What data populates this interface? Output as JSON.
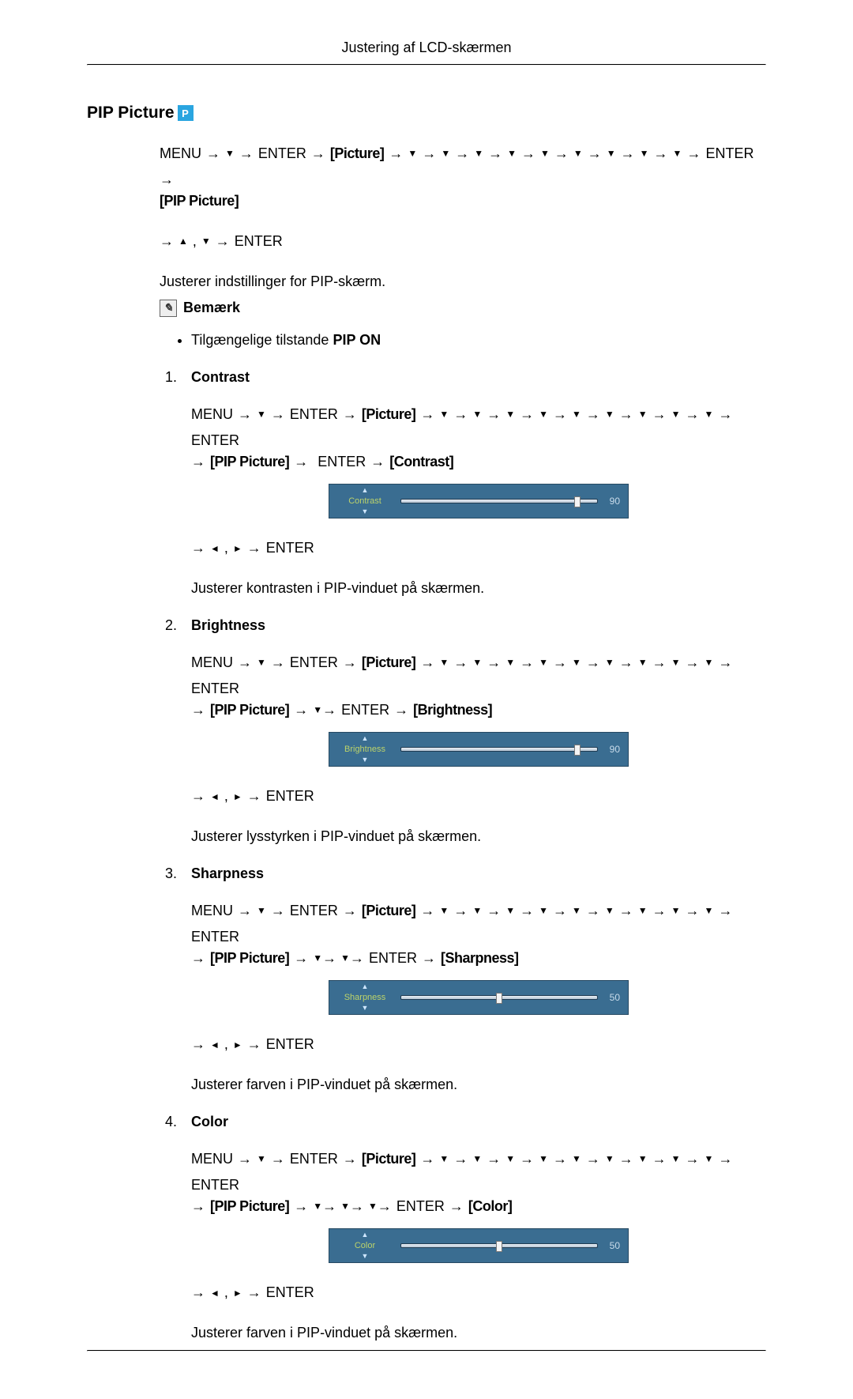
{
  "header": {
    "title": "Justering af LCD-skærmen"
  },
  "section": {
    "title": "PIP Picture",
    "badge": "P"
  },
  "labels": {
    "menu": "MENU",
    "enter": "ENTER",
    "picture": "[Picture]",
    "pip_picture": "[PIP Picture]",
    "contrast_osd": "[Contrast]",
    "brightness_osd": "[Brightness]",
    "sharpness_osd": "[Sharpness]",
    "color_osd": "[Color]"
  },
  "intro": {
    "adjusts": "Justerer indstillinger for PIP-skærm.",
    "note_label": "Bemærk",
    "bullet_prefix": "Tilgængelige tilstande ",
    "bullet_bold": "PIP ON"
  },
  "items": [
    {
      "num": "1.",
      "title": "Contrast",
      "desc": "Justerer kontrasten i PIP-vinduet på skærmen.",
      "slider": {
        "label": "Contrast",
        "value": 90,
        "thumb_pct": 90
      }
    },
    {
      "num": "2.",
      "title": "Brightness",
      "desc": "Justerer lysstyrken i PIP-vinduet på skærmen.",
      "slider": {
        "label": "Brightness",
        "value": 90,
        "thumb_pct": 90
      }
    },
    {
      "num": "3.",
      "title": "Sharpness",
      "desc": "Justerer farven i PIP-vinduet på skærmen.",
      "slider": {
        "label": "Sharpness",
        "value": 50,
        "thumb_pct": 50
      }
    },
    {
      "num": "4.",
      "title": "Color",
      "desc": "Justerer farven i PIP-vinduet på skærmen.",
      "slider": {
        "label": "Color",
        "value": 50,
        "thumb_pct": 50
      }
    }
  ],
  "nav_extra": {
    "updown_enter_prefix": ", ",
    "leftright_enter_sep": ", "
  }
}
